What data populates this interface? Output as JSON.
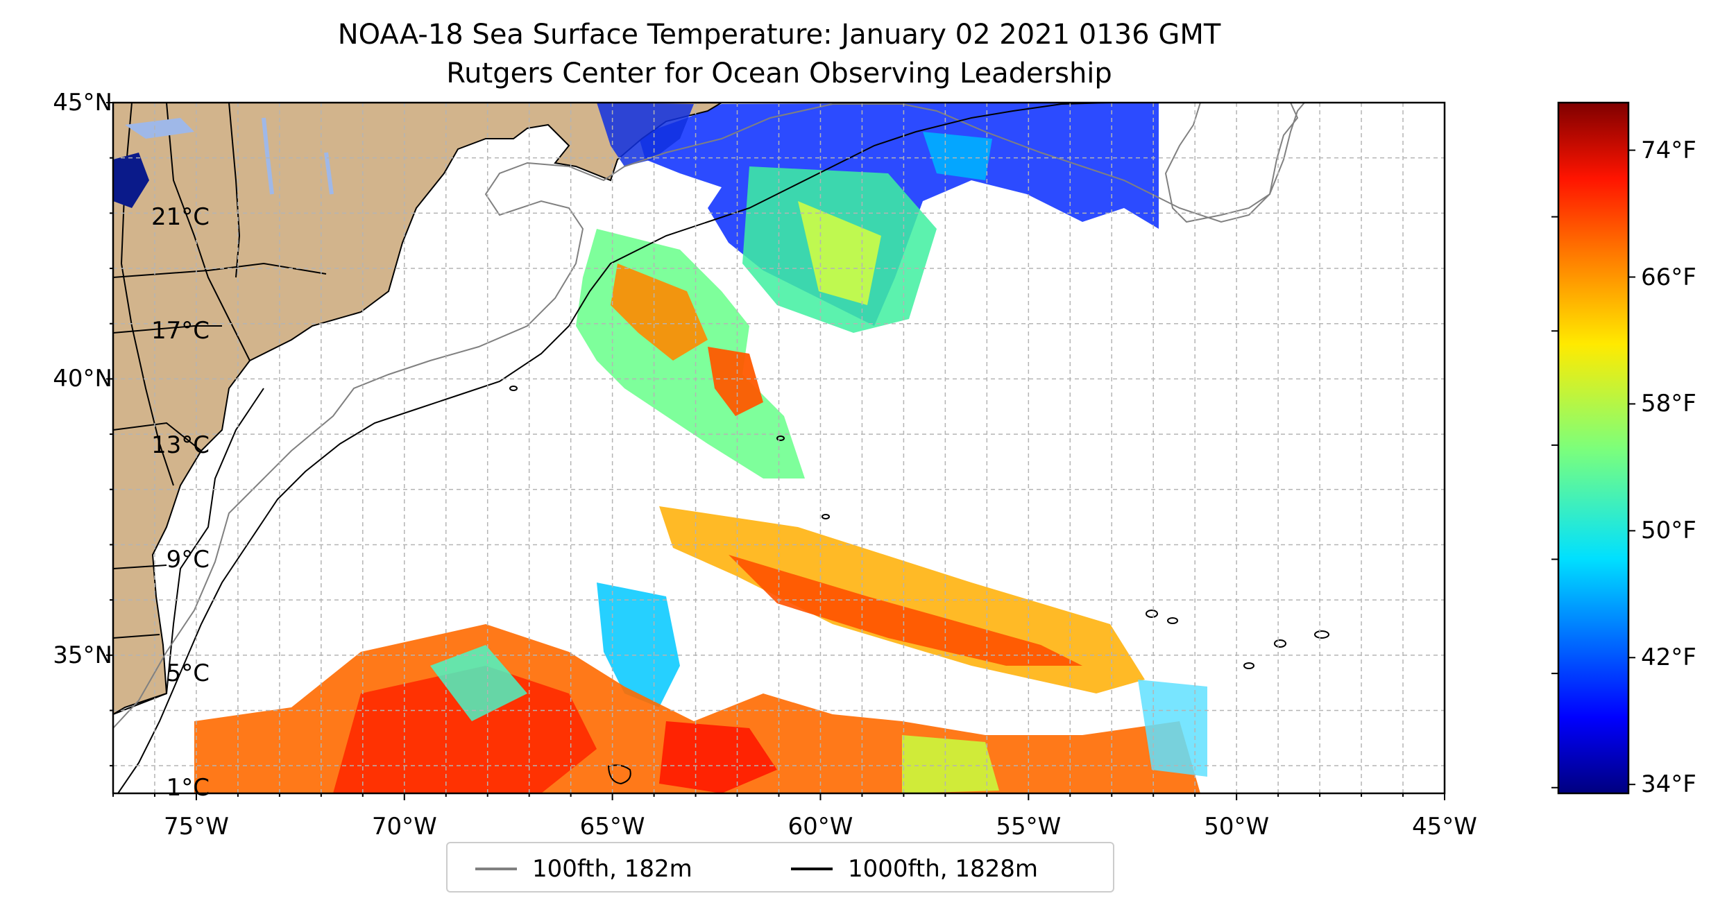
{
  "title": {
    "line1": "NOAA-18 Sea Surface Temperature: January 02 2021 0136 GMT",
    "line2": "Rutgers Center for Ocean Observing Leadership"
  },
  "map": {
    "extent_lon": [
      -77,
      -45
    ],
    "extent_lat": [
      32.5,
      45
    ],
    "gridlines": true,
    "land_color": "#d2b48c",
    "lake_color": "#9fb8e8",
    "lat_ticks": [
      {
        "value": 45,
        "label": "45°N"
      },
      {
        "value": 40,
        "label": "40°N"
      },
      {
        "value": 35,
        "label": "35°N"
      }
    ],
    "lon_ticks": [
      {
        "value": -75,
        "label": "75°W"
      },
      {
        "value": -70,
        "label": "70°W"
      },
      {
        "value": -65,
        "label": "65°W"
      },
      {
        "value": -60,
        "label": "60°W"
      },
      {
        "value": -55,
        "label": "55°W"
      },
      {
        "value": -50,
        "label": "50°W"
      },
      {
        "value": -45,
        "label": "45°W"
      }
    ]
  },
  "colorbar": {
    "colormap": "jet",
    "celsius_labels": [
      {
        "value": 21,
        "label": "21°C"
      },
      {
        "value": 17,
        "label": "17°C"
      },
      {
        "value": 13,
        "label": "13°C"
      },
      {
        "value": 9,
        "label": "9°C"
      },
      {
        "value": 5,
        "label": "5°C"
      },
      {
        "value": 1,
        "label": "1°C"
      }
    ],
    "fahrenheit_labels": [
      {
        "value": 74,
        "label": "74°F"
      },
      {
        "value": 66,
        "label": "66°F"
      },
      {
        "value": 58,
        "label": "58°F"
      },
      {
        "value": 50,
        "label": "50°F"
      },
      {
        "value": 42,
        "label": "42°F"
      },
      {
        "value": 34,
        "label": "34°F"
      }
    ]
  },
  "legend": {
    "placement": "bottom-center",
    "items": [
      {
        "label": "100fth, 182m",
        "color": "#808080"
      },
      {
        "label": "1000fth, 1828m",
        "color": "#000000"
      }
    ]
  }
}
